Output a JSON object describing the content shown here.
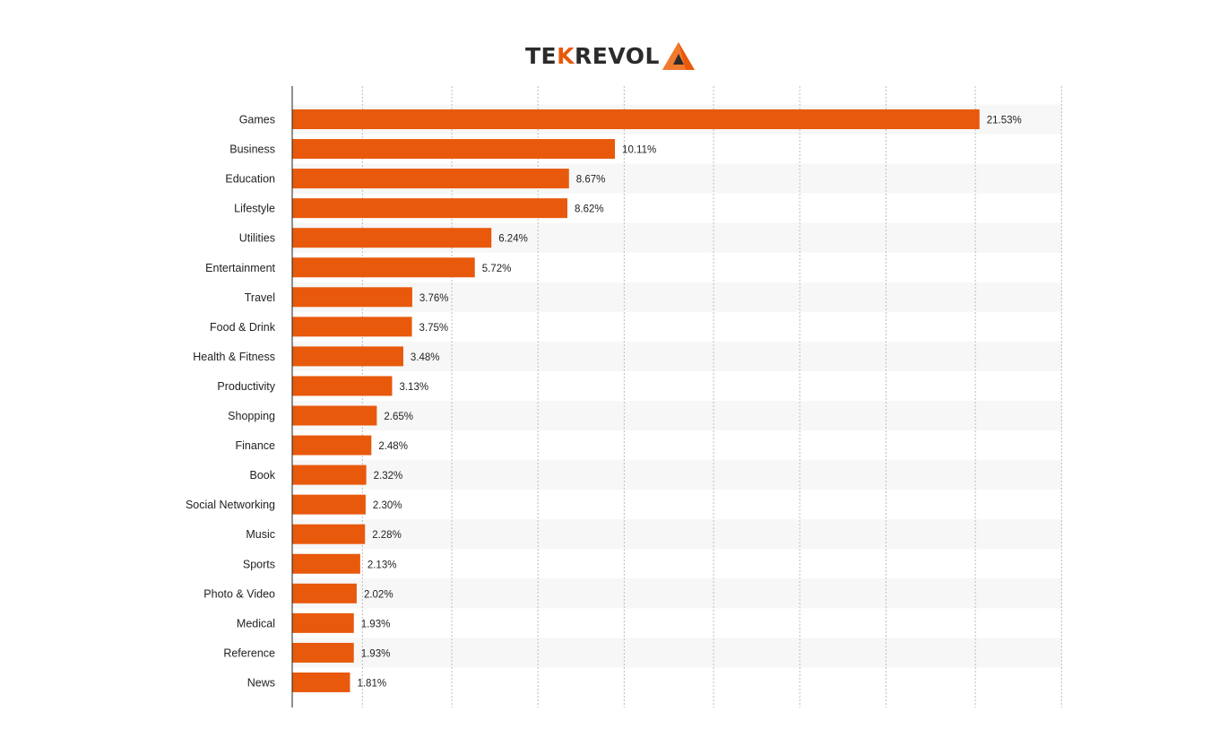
{
  "logo": {
    "text_left": "TE",
    "text_k": "K",
    "text_right": "REVOL",
    "colors": {
      "dark": "#2b2b2b",
      "accent": "#e8590c"
    }
  },
  "chart_data": {
    "type": "bar",
    "orientation": "horizontal",
    "categories": [
      "Games",
      "Business",
      "Education",
      "Lifestyle",
      "Utilities",
      "Entertainment",
      "Travel",
      "Food & Drink",
      "Health & Fitness",
      "Productivity",
      "Shopping",
      "Finance",
      "Book",
      "Social Networking",
      "Music",
      "Sports",
      "Photo & Video",
      "Medical",
      "Reference",
      "News"
    ],
    "values": [
      21.53,
      10.11,
      8.67,
      8.62,
      6.24,
      5.72,
      3.76,
      3.75,
      3.48,
      3.13,
      2.65,
      2.48,
      2.32,
      2.3,
      2.28,
      2.13,
      2.02,
      1.93,
      1.93,
      1.81
    ],
    "value_labels": [
      "21.53%",
      "10.11%",
      "8.67%",
      "8.62%",
      "6.24%",
      "5.72%",
      "3.76%",
      "3.75%",
      "3.48%",
      "3.13%",
      "2.65%",
      "2.48%",
      "2.32%",
      "2.30%",
      "2.28%",
      "2.13%",
      "2.02%",
      "1.93%",
      "1.93%",
      "1.81%"
    ],
    "title": "",
    "xlabel": "",
    "ylabel": "",
    "xlim": [
      0,
      24.12
    ],
    "gridlines": [
      2.2,
      5.0,
      7.7,
      10.4,
      13.2,
      15.9,
      18.6,
      21.4,
      24.1
    ],
    "grid": true,
    "legend": "none",
    "bar_color": "#e8590c",
    "alt_row_color": "#f7f7f7"
  }
}
